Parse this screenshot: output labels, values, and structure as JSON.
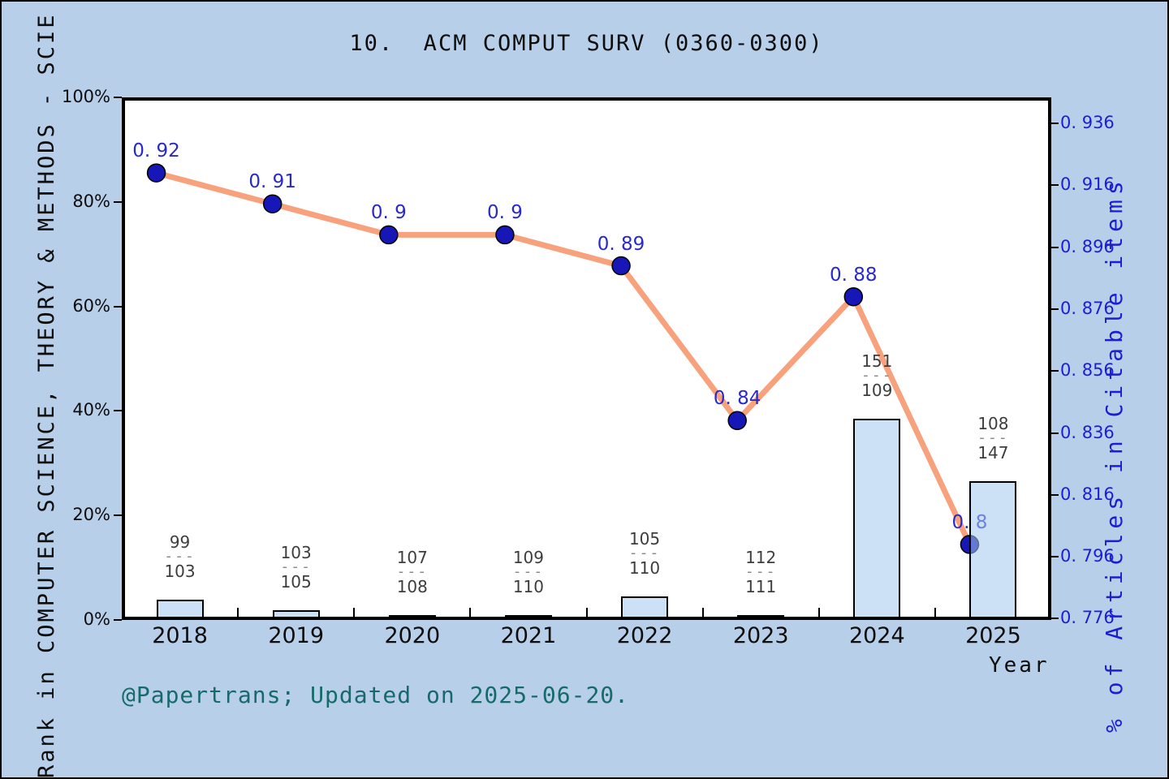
{
  "title": "10.  ACM COMPUT SURV (0360-0300)",
  "footer": "@Papertrans; Updated on 2025-06-20.",
  "colors": {
    "background": "#b8cfe9",
    "plot_background": "#ffffff",
    "frame": "#000000",
    "bar_fill": "rgba(164,200,238,0.55)",
    "bar_border": "#000000",
    "line": "#f7a17d",
    "marker": "#1717b8",
    "point_label": "#2929cc",
    "right_axis_text": "#1d1dd4",
    "left_axis_text": "#0d0d0d",
    "fraction_text": "#3d3d3d",
    "fraction_dash": "#878787",
    "footer_text": "#166a6a"
  },
  "chart_data": {
    "type": "line+bar",
    "title": "10.  ACM COMPUT SURV (0360-0300)",
    "xlabel": "Year",
    "categories": [
      "2018",
      "2019",
      "2020",
      "2021",
      "2022",
      "2023",
      "2024",
      "2025"
    ],
    "left_axis": {
      "label": "Rank in COMPUTER SCIENCE, THEORY & METHODS - SCIE",
      "ticks": [
        {
          "label": "0%",
          "pct": 0
        },
        {
          "label": "20%",
          "pct": 20
        },
        {
          "label": "40%",
          "pct": 40
        },
        {
          "label": "60%",
          "pct": 60
        },
        {
          "label": "80%",
          "pct": 80
        },
        {
          "label": "100%",
          "pct": 100
        }
      ],
      "range": [
        0,
        100
      ]
    },
    "right_axis": {
      "label": "% of Articles in Citable items",
      "ticks": [
        {
          "label": "0. 776",
          "value": 0.776
        },
        {
          "label": "0. 796",
          "value": 0.796
        },
        {
          "label": "0. 816",
          "value": 0.816
        },
        {
          "label": "0. 836",
          "value": 0.836
        },
        {
          "label": "0. 856",
          "value": 0.856
        },
        {
          "label": "0. 876",
          "value": 0.876
        },
        {
          "label": "0. 896",
          "value": 0.896
        },
        {
          "label": "0. 916",
          "value": 0.916
        },
        {
          "label": "0. 936",
          "value": 0.936
        }
      ],
      "range": [
        0.7756,
        0.9444
      ]
    },
    "series": [
      {
        "name": "% of Articles in Citable items",
        "type": "line",
        "axis": "right",
        "values": [
          0.92,
          0.91,
          0.9,
          0.9,
          0.89,
          0.84,
          0.88,
          0.8
        ],
        "point_labels": [
          "0. 92",
          "0. 91",
          "0. 9",
          "0. 9",
          "0. 89",
          "0. 84",
          "0. 88",
          "0. 8"
        ]
      },
      {
        "name": "Rank in category (articles / total)",
        "type": "bar",
        "axis": "left",
        "values_pct": [
          3.88,
          1.9,
          0.93,
          0.91,
          4.55,
          0.9,
          38.53,
          26.53
        ],
        "fractions": [
          {
            "num": "99",
            "den": "103"
          },
          {
            "num": "103",
            "den": "105"
          },
          {
            "num": "107",
            "den": "108"
          },
          {
            "num": "109",
            "den": "110"
          },
          {
            "num": "105",
            "den": "110"
          },
          {
            "num": "112",
            "den": "111"
          },
          {
            "num": "151",
            "den": "109"
          },
          {
            "num": "108",
            "den": "147"
          }
        ]
      }
    ],
    "legend": "none",
    "grid": false
  }
}
